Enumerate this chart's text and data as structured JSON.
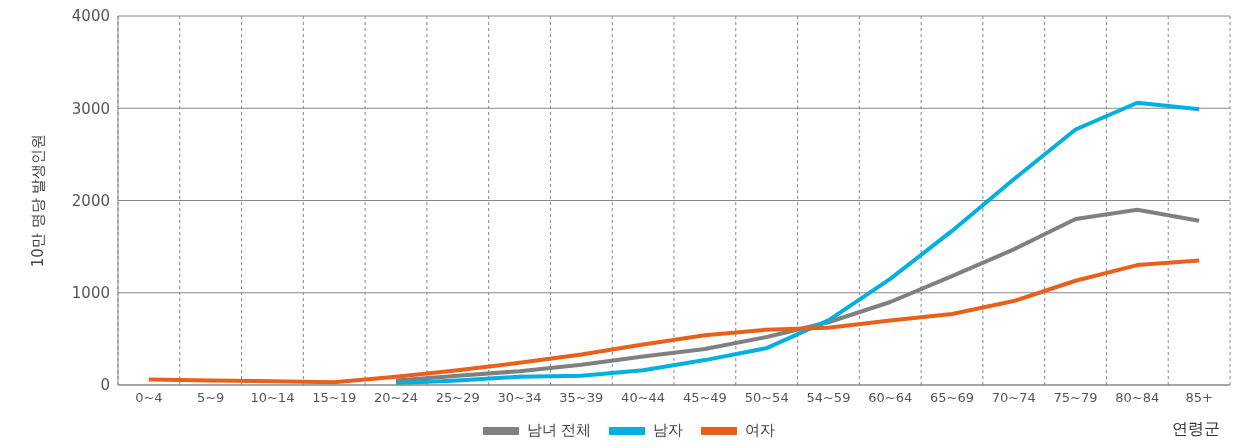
{
  "chart_data": {
    "type": "line",
    "ylabel": "10만 명당 발생인원",
    "xlabel": "연령군",
    "categories": [
      "0~4",
      "5~9",
      "10~14",
      "15~19",
      "20~24",
      "25~29",
      "30~34",
      "35~39",
      "40~44",
      "45~49",
      "50~54",
      "54~59",
      "60~64",
      "65~69",
      "70~74",
      "75~79",
      "80~84",
      "85+"
    ],
    "series": [
      {
        "name": "남녀 전체",
        "color": "#808080",
        "values": [
          null,
          null,
          null,
          null,
          50,
          100,
          150,
          220,
          310,
          390,
          520,
          680,
          900,
          1180,
          1470,
          1800,
          1900,
          1780
        ]
      },
      {
        "name": "남자",
        "color": "#00b0e0",
        "values": [
          null,
          null,
          null,
          null,
          20,
          50,
          90,
          100,
          160,
          270,
          400,
          700,
          1150,
          1670,
          2230,
          2770,
          3060,
          2990
        ]
      },
      {
        "name": "여자",
        "color": "#e8601c",
        "values": [
          60,
          50,
          40,
          30,
          90,
          160,
          240,
          330,
          440,
          540,
          600,
          620,
          700,
          770,
          910,
          1130,
          1300,
          1350
        ]
      }
    ],
    "ylim": [
      0,
      4000
    ],
    "yticks": [
      0,
      1000,
      2000,
      3000,
      4000
    ],
    "grid": true,
    "legend": "bottom",
    "marker": "none",
    "line_style": "solid"
  }
}
